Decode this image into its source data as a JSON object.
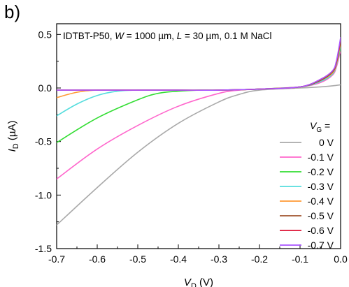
{
  "panel_label": "b)",
  "chart_data": {
    "type": "line",
    "title_parts": {
      "device": "IDTBT-P50, ",
      "w_symbol": "W",
      "w_value": " = 1000 µm, ",
      "l_symbol": "L",
      "l_value": " = 30 µm, 0.1 M NaCl"
    },
    "xlabel": {
      "symbol": "V",
      "sub": "D",
      "unit": " (V)"
    },
    "ylabel": {
      "symbol": "I",
      "sub": "D",
      "unit": " (µA)"
    },
    "xlim": [
      -0.7,
      0.0
    ],
    "ylim": [
      -1.5,
      0.6
    ],
    "xticks": [
      -0.7,
      -0.6,
      -0.5,
      -0.4,
      -0.3,
      -0.2,
      -0.1,
      0.0
    ],
    "xtick_labels": [
      "-0.7",
      "-0.6",
      "-0.5",
      "-0.4",
      "-0.3",
      "-0.2",
      "-0.1",
      "0.0"
    ],
    "yticks": [
      0.5,
      0.0,
      -0.5,
      -1.0,
      -1.5
    ],
    "ytick_labels": [
      "0.5",
      "0.0",
      "-0.5",
      "-1.0",
      "-1.5"
    ],
    "legend_title": {
      "symbol": "V",
      "sub": "G",
      "suffix": " ="
    },
    "legend_position": "right",
    "series": [
      {
        "name": "0 V",
        "color": "#a9a9a9",
        "x": [
          -0.7,
          -0.6,
          -0.5,
          -0.4,
          -0.3,
          -0.25,
          -0.2,
          -0.1,
          -0.05,
          -0.02,
          0.0
        ],
        "y": [
          -1.28,
          -0.93,
          -0.6,
          -0.33,
          -0.13,
          -0.06,
          -0.02,
          0.0,
          0.01,
          0.02,
          0.03
        ]
      },
      {
        "name": "-0.1 V",
        "color": "#ff66cc",
        "x": [
          -0.7,
          -0.6,
          -0.5,
          -0.4,
          -0.3,
          -0.25,
          -0.2,
          -0.1,
          -0.05,
          -0.02,
          -0.01,
          0.0
        ],
        "y": [
          -0.85,
          -0.57,
          -0.35,
          -0.17,
          -0.05,
          -0.02,
          -0.01,
          0.01,
          0.05,
          0.12,
          0.2,
          0.35
        ]
      },
      {
        "name": "-0.2 V",
        "color": "#33dd33",
        "x": [
          -0.7,
          -0.6,
          -0.5,
          -0.45,
          -0.4,
          -0.35,
          -0.3,
          -0.2,
          -0.1,
          -0.05,
          -0.02,
          -0.01,
          0.0
        ],
        "y": [
          -0.51,
          -0.28,
          -0.11,
          -0.05,
          -0.03,
          -0.02,
          -0.02,
          -0.01,
          0.01,
          0.06,
          0.13,
          0.22,
          0.38
        ]
      },
      {
        "name": "-0.3 V",
        "color": "#55dddd",
        "x": [
          -0.7,
          -0.65,
          -0.6,
          -0.55,
          -0.5,
          -0.4,
          -0.3,
          -0.2,
          -0.1,
          -0.05,
          -0.02,
          -0.01,
          0.0
        ],
        "y": [
          -0.26,
          -0.15,
          -0.07,
          -0.03,
          -0.02,
          -0.02,
          -0.02,
          -0.01,
          0.01,
          0.06,
          0.13,
          0.22,
          0.4
        ]
      },
      {
        "name": "-0.4 V",
        "color": "#ff9933",
        "x": [
          -0.7,
          -0.65,
          -0.6,
          -0.5,
          -0.4,
          -0.3,
          -0.2,
          -0.1,
          -0.05,
          -0.02,
          -0.01,
          0.0
        ],
        "y": [
          -0.09,
          -0.04,
          -0.02,
          -0.02,
          -0.02,
          -0.02,
          -0.01,
          0.01,
          0.07,
          0.14,
          0.23,
          0.42
        ]
      },
      {
        "name": "-0.5 V",
        "color": "#a0522d",
        "x": [
          -0.7,
          -0.6,
          -0.5,
          -0.4,
          -0.3,
          -0.2,
          -0.1,
          -0.05,
          -0.02,
          -0.01,
          0.0
        ],
        "y": [
          -0.02,
          -0.02,
          -0.02,
          -0.02,
          -0.02,
          -0.01,
          0.01,
          0.07,
          0.15,
          0.24,
          0.44
        ]
      },
      {
        "name": "-0.6 V",
        "color": "#dd1133",
        "x": [
          -0.7,
          -0.6,
          -0.5,
          -0.4,
          -0.3,
          -0.2,
          -0.1,
          -0.05,
          -0.02,
          -0.01,
          0.0
        ],
        "y": [
          -0.02,
          -0.02,
          -0.02,
          -0.02,
          -0.02,
          -0.01,
          0.01,
          0.08,
          0.16,
          0.25,
          0.46
        ]
      },
      {
        "name": "-0.7 V",
        "color": "#aa55ff",
        "x": [
          -0.7,
          -0.6,
          -0.5,
          -0.4,
          -0.3,
          -0.2,
          -0.1,
          -0.05,
          -0.02,
          -0.01,
          0.0
        ],
        "y": [
          -0.02,
          -0.02,
          -0.02,
          -0.02,
          -0.02,
          -0.01,
          0.01,
          0.08,
          0.16,
          0.26,
          0.47
        ]
      }
    ]
  }
}
